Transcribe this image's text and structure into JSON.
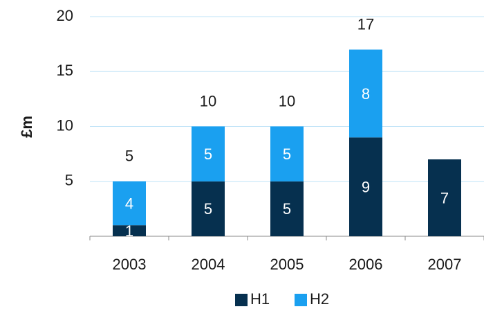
{
  "chart_data": {
    "type": "stacked_bar",
    "y_label": "£m",
    "categories": [
      "2003",
      "2004",
      "2005",
      "2006",
      "2007"
    ],
    "series": [
      {
        "name": "H1",
        "color": "#06304f",
        "values": [
          1,
          5,
          5,
          9,
          7
        ]
      },
      {
        "name": "H2",
        "color": "#1aa0f0",
        "values": [
          4,
          5,
          5,
          8,
          0
        ]
      }
    ],
    "totals": [
      5,
      10,
      10,
      17,
      null
    ],
    "ylim": [
      0,
      20
    ],
    "yticks": [
      5,
      10,
      15,
      20
    ],
    "grid": true
  }
}
